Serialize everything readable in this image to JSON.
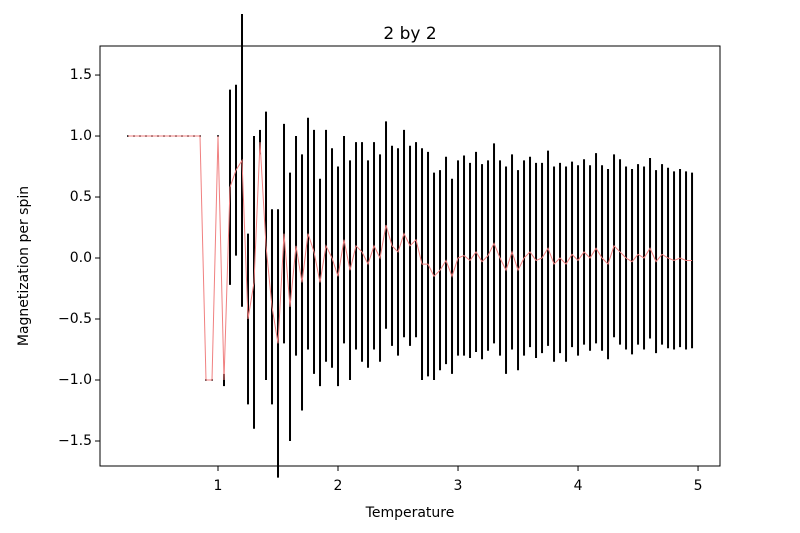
{
  "chart_data": {
    "type": "errorbar",
    "title": "2 by 2",
    "x_label": "Temperature",
    "y_label": "Magnetization per spin",
    "x": [
      0.25,
      0.3,
      0.35,
      0.4,
      0.45,
      0.5,
      0.55,
      0.6,
      0.65,
      0.7,
      0.75,
      0.8,
      0.85,
      0.9,
      0.95,
      1.0,
      1.05,
      1.1,
      1.15,
      1.2,
      1.25,
      1.3,
      1.35,
      1.4,
      1.45,
      1.5,
      1.55,
      1.6,
      1.65,
      1.7,
      1.75,
      1.8,
      1.85,
      1.9,
      1.95,
      2.0,
      2.05,
      2.1,
      2.15,
      2.2,
      2.25,
      2.3,
      2.35,
      2.4,
      2.45,
      2.5,
      2.55,
      2.6,
      2.65,
      2.7,
      2.75,
      2.8,
      2.85,
      2.9,
      2.95,
      3.0,
      3.05,
      3.1,
      3.15,
      3.2,
      3.25,
      3.3,
      3.35,
      3.4,
      3.45,
      3.5,
      3.55,
      3.6,
      3.65,
      3.7,
      3.75,
      3.8,
      3.85,
      3.9,
      3.95,
      4.0,
      4.05,
      4.1,
      4.15,
      4.2,
      4.25,
      4.3,
      4.35,
      4.4,
      4.45,
      4.5,
      4.55,
      4.6,
      4.65,
      4.7,
      4.75,
      4.8,
      4.85,
      4.9,
      4.95
    ],
    "series": [
      {
        "color": "#f08080",
        "error_color": "#000000",
        "values": [
          1,
          1,
          1,
          1,
          1,
          1,
          1,
          1,
          1,
          1,
          1,
          1,
          1,
          -1,
          -1,
          1,
          -1,
          0.58,
          0.72,
          0.8,
          -0.5,
          -0.2,
          0.95,
          0.1,
          -0.4,
          -0.7,
          0.2,
          -0.4,
          0.1,
          -0.2,
          0.2,
          0.05,
          -0.2,
          0.1,
          0,
          -0.15,
          0.15,
          -0.1,
          0.1,
          0.05,
          -0.05,
          0.1,
          0,
          0.27,
          0.1,
          0.05,
          0.2,
          0.1,
          0.15,
          -0.05,
          -0.05,
          -0.15,
          -0.1,
          -0.02,
          -0.15,
          0,
          0.02,
          -0.02,
          0.05,
          -0.03,
          0.02,
          0.12,
          0,
          -0.1,
          0.05,
          -0.1,
          0,
          0.05,
          -0.02,
          0,
          0.08,
          -0.05,
          0,
          -0.05,
          0.03,
          -0.02,
          0.05,
          0,
          0.08,
          0,
          -0.05,
          0.1,
          0.05,
          0,
          -0.03,
          0.03,
          0,
          0.08,
          -0.03,
          0.03,
          0,
          -0.02,
          0,
          -0.02,
          -0.02
        ],
        "errors": [
          0,
          0,
          0,
          0,
          0,
          0,
          0,
          0,
          0,
          0,
          0,
          0,
          0,
          0,
          0,
          0,
          0.05,
          0.8,
          0.7,
          1.2,
          0.7,
          1.2,
          0.1,
          1.1,
          0.8,
          1.1,
          0.9,
          1.1,
          0.9,
          1.05,
          0.95,
          1.0,
          0.85,
          0.95,
          0.9,
          0.9,
          0.85,
          0.9,
          0.85,
          0.9,
          0.85,
          0.85,
          0.85,
          0.85,
          0.82,
          0.85,
          0.85,
          0.82,
          0.8,
          0.95,
          0.92,
          0.85,
          0.82,
          0.85,
          0.8,
          0.8,
          0.82,
          0.8,
          0.82,
          0.8,
          0.78,
          0.82,
          0.8,
          0.85,
          0.8,
          0.82,
          0.8,
          0.78,
          0.8,
          0.78,
          0.8,
          0.8,
          0.78,
          0.8,
          0.76,
          0.78,
          0.76,
          0.76,
          0.78,
          0.76,
          0.78,
          0.75,
          0.76,
          0.75,
          0.76,
          0.74,
          0.75,
          0.74,
          0.75,
          0.74,
          0.74,
          0.73,
          0.73,
          0.73,
          0.72
        ]
      }
    ],
    "xlim": [
      0.0167,
      5.183
    ],
    "ylim": [
      -1.705,
      1.738
    ],
    "xticks": [
      1,
      2,
      3,
      4,
      5
    ],
    "yticks": [
      {
        "value": -1.5,
        "label": "−1.5"
      },
      {
        "value": -1,
        "label": "−1.0"
      },
      {
        "value": -0.5,
        "label": "−0.5"
      },
      {
        "value": 0,
        "label": "0.0"
      },
      0.5,
      {
        "value": 1,
        "label": "1.0"
      },
      1.5
    ]
  }
}
